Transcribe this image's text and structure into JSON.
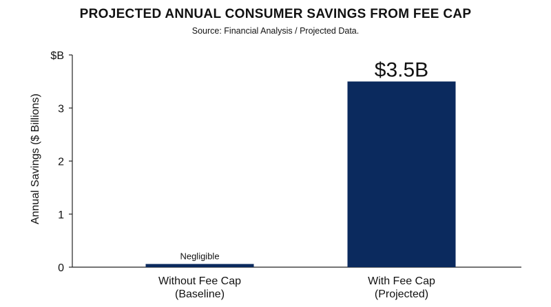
{
  "chart_data": {
    "type": "bar",
    "title": "PROJECTED ANNUAL CONSUMER SAVINGS FROM FEE CAP",
    "subtitle": "Source: Financial Analysis / Projected Data.",
    "ylabel": "Annual Savings ($ Billions)",
    "xlabel": "",
    "categories": [
      [
        "Without Fee Cap",
        "(Baseline)"
      ],
      [
        "With Fee Cap",
        "(Projected)"
      ]
    ],
    "values": [
      0.06,
      3.5
    ],
    "data_labels": [
      "Negligible",
      "$3.5B"
    ],
    "ylim": [
      0,
      4
    ],
    "yticks": [
      {
        "value": 0,
        "label": "0"
      },
      {
        "value": 1,
        "label": "1"
      },
      {
        "value": 2,
        "label": "2"
      },
      {
        "value": 3,
        "label": "3"
      },
      {
        "value": 4,
        "label": "$B"
      }
    ],
    "grid": false,
    "colors": {
      "bar": "#0b2a5e",
      "axis": "#222222",
      "text": "#111111"
    }
  }
}
